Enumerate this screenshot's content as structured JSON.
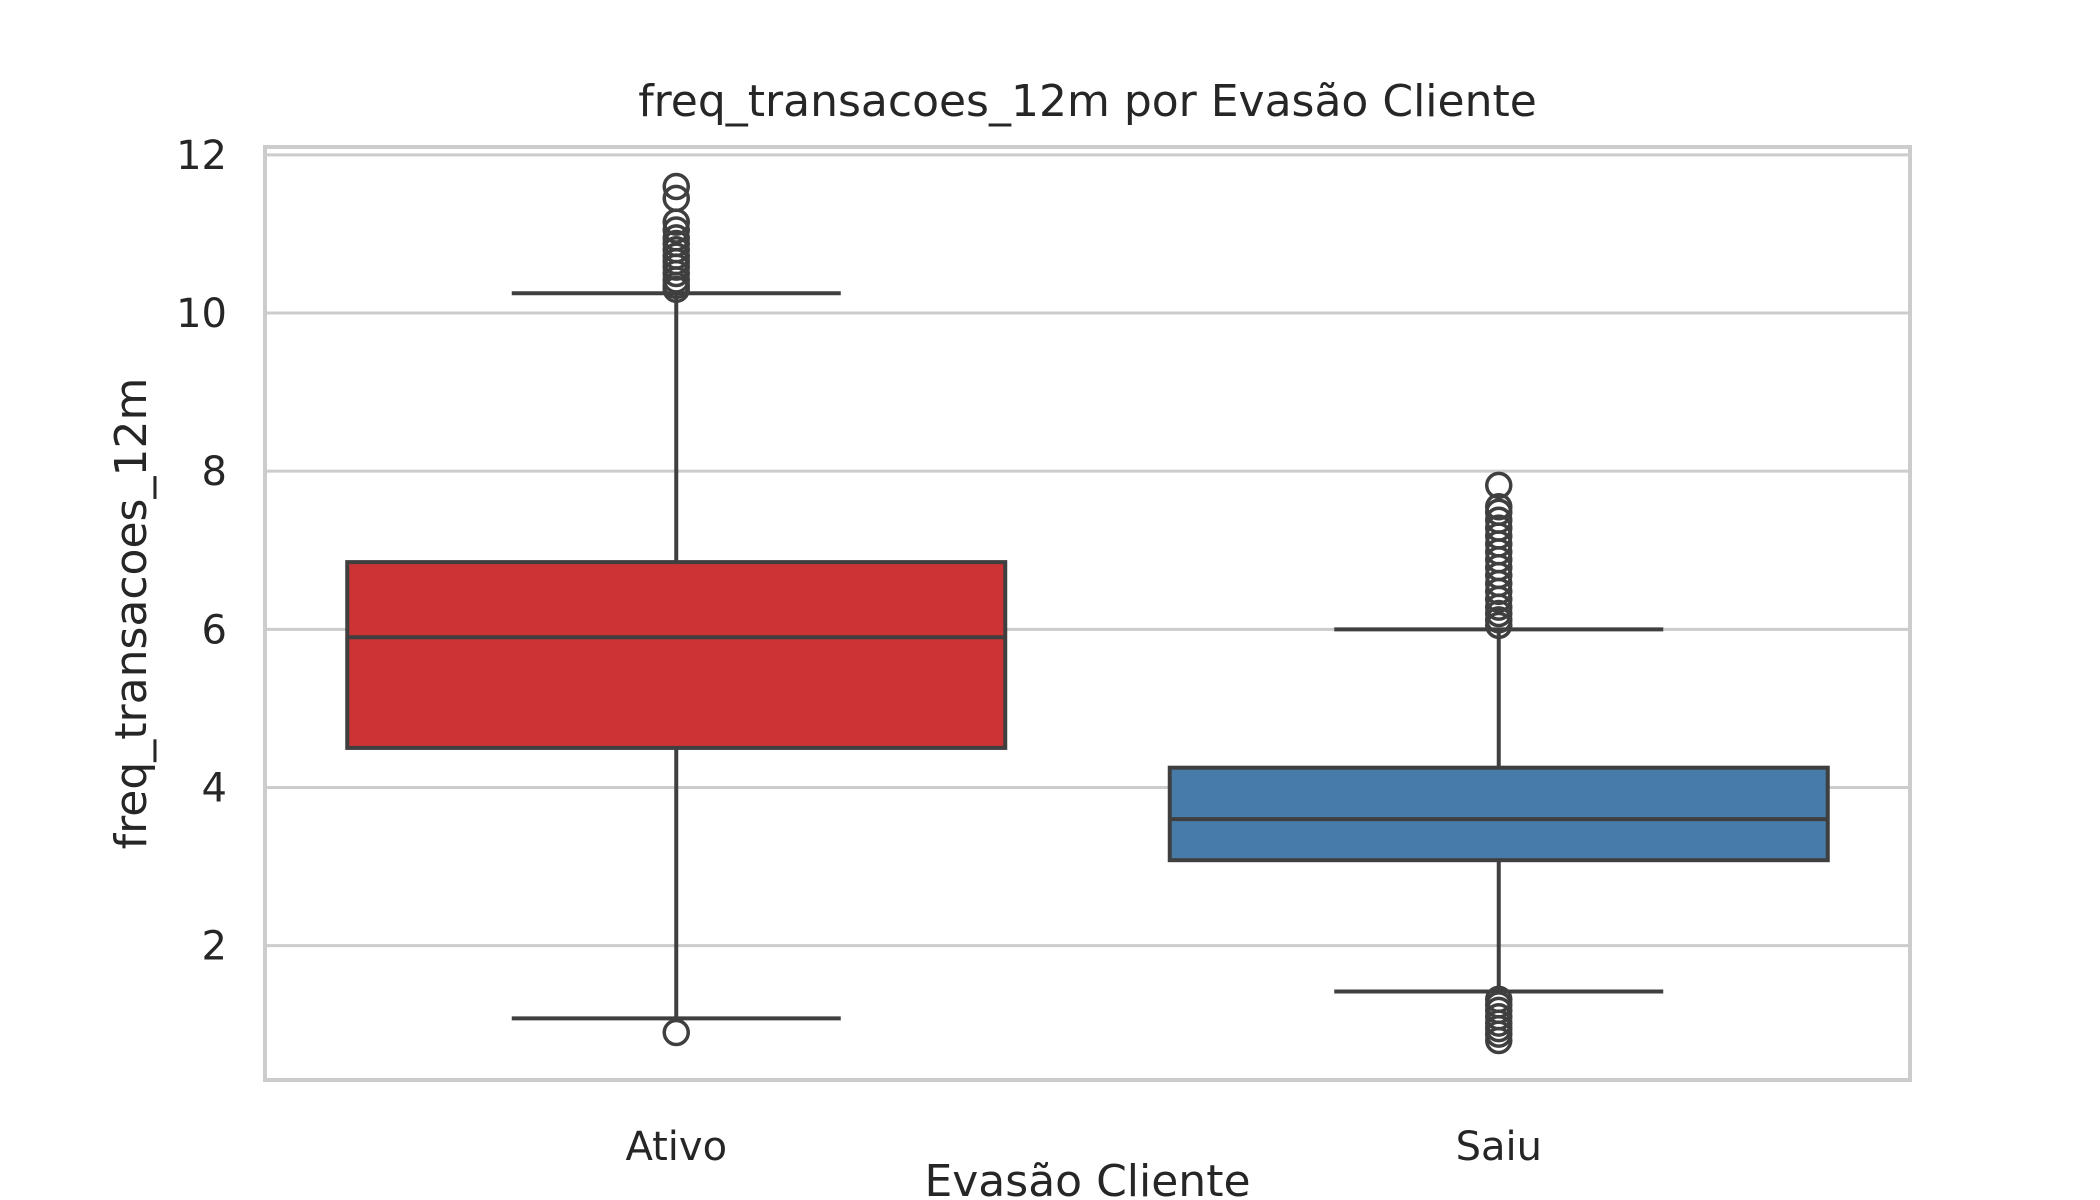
{
  "chart_data": {
    "type": "box",
    "title": "freq_transacoes_12m por Evasão Cliente",
    "xlabel": "Evasão Cliente",
    "ylabel": "freq_transacoes_12m",
    "ylim": [
      0.3,
      12.1
    ],
    "yticks": [
      2,
      4,
      6,
      8,
      10,
      12
    ],
    "grid": "horizontal",
    "categories": [
      "Ativo",
      "Saiu"
    ],
    "series": [
      {
        "category": "Ativo",
        "color": "#cb3335",
        "q1": 4.5,
        "median": 5.9,
        "q3": 6.85,
        "whisker_low": 1.08,
        "whisker_high": 10.25,
        "outliers": [
          0.9,
          10.3,
          10.35,
          10.42,
          10.5,
          10.58,
          10.65,
          10.72,
          10.8,
          10.88,
          10.95,
          11.05,
          11.15,
          11.45,
          11.6
        ]
      },
      {
        "category": "Saiu",
        "color": "#477ca8",
        "q1": 3.08,
        "median": 3.6,
        "q3": 4.25,
        "whisker_low": 1.42,
        "whisker_high": 6.0,
        "outliers": [
          0.8,
          0.88,
          0.95,
          1.02,
          1.1,
          1.18,
          1.25,
          1.32,
          6.05,
          6.12,
          6.2,
          6.28,
          6.38,
          6.48,
          6.58,
          6.68,
          6.78,
          6.88,
          6.98,
          7.08,
          7.18,
          7.28,
          7.38,
          7.48,
          7.55,
          7.82
        ]
      }
    ]
  }
}
